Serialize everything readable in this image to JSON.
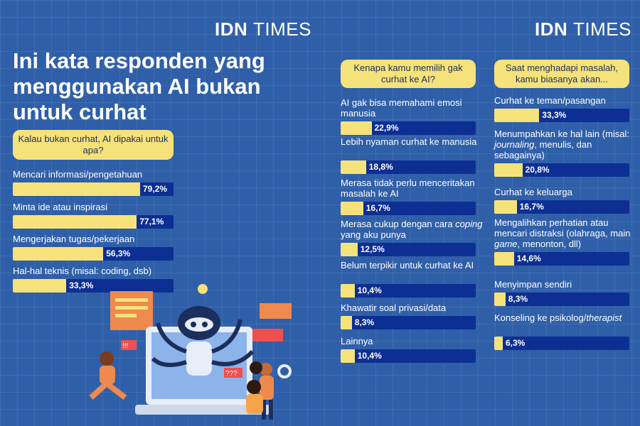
{
  "brand": {
    "name_bold": "IDN",
    "name_light": "TIMES"
  },
  "title": "Ini kata responden yang menggunakan AI bukan untuk curhat",
  "colors": {
    "background": "#2f5fa8",
    "fill": "#f6e27a",
    "track": "#0d2f93"
  },
  "chart_data": [
    {
      "type": "bar",
      "title": "Kalau bukan curhat, AI dipakai untuk apa?",
      "categories": [
        "Mencari informasi/pengetahuan",
        "Minta ide atau inspirasi",
        "Mengerjakan tugas/pekerjaan",
        "Hal-hal teknis (misal: coding, dsb)"
      ],
      "values": [
        79.2,
        77.1,
        56.3,
        33.3
      ],
      "value_labels": [
        "79,2%",
        "77,1%",
        "56,3%",
        "33,3%"
      ],
      "xlim": [
        0,
        100
      ]
    },
    {
      "type": "bar",
      "title": "Kenapa kamu memilih gak curhat ke AI?",
      "categories": [
        "AI gak bisa memahami emosi manusia",
        "Lebih nyaman curhat ke manusia",
        "Merasa tidak perlu menceritakan masalah ke AI",
        "Merasa cukup dengan cara coping yang aku punya",
        "Belum terpikir untuk curhat ke AI",
        "Khawatir soal privasi/data",
        "Lainnya"
      ],
      "values": [
        22.9,
        18.8,
        16.7,
        12.5,
        10.4,
        8.3,
        10.4
      ],
      "value_labels": [
        "22,9%",
        "18,8%",
        "16,7%",
        "12,5%",
        "10,4%",
        "8,3%",
        "10,4%"
      ],
      "xlim": [
        0,
        100
      ]
    },
    {
      "type": "bar",
      "title": "Saat menghadapi masalah, kamu biasanya akan...",
      "categories": [
        "Curhat ke teman/pasangan",
        "Menumpahkan ke hal lain (misal: journaling, menulis, dan sebagainya)",
        "Curhat ke keluarga",
        "Mengalihkan perhatian atau mencari distraksi (olahraga, main game, menonton, dll)",
        "Menyimpan sendiri",
        "Konseling ke psikolog/therapist"
      ],
      "values": [
        33.3,
        20.8,
        16.7,
        14.6,
        8.3,
        6.3
      ],
      "value_labels": [
        "33,3%",
        "20,8%",
        "16,7%",
        "14,6%",
        "8,3%",
        "6,3%"
      ],
      "xlim": [
        0,
        100
      ]
    }
  ],
  "illustration": {
    "signs": [
      "!!!",
      "???"
    ]
  }
}
